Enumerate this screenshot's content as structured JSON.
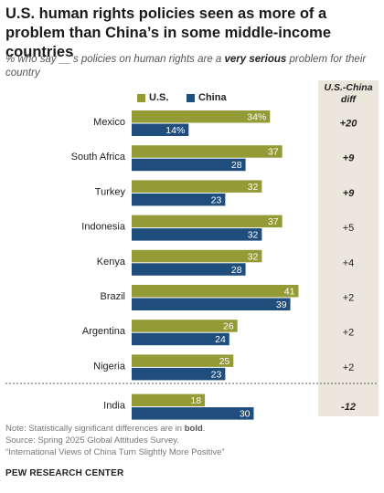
{
  "title": "U.S. human rights policies seen as more of a problem than China’s in some middle-income countries",
  "subtitle_pre": "% who say __’s policies on human rights are a ",
  "subtitle_bold": "very serious",
  "subtitle_post": " problem for their country",
  "diff_header": "U.S.-China diff",
  "colors": {
    "us": "#949b36",
    "china": "#1f4e7d",
    "diff_bg": "#ece7dc"
  },
  "chart_data": {
    "type": "bar",
    "orientation": "horizontal",
    "categories": [
      "Mexico",
      "South Africa",
      "Turkey",
      "Indonesia",
      "Kenya",
      "Brazil",
      "Argentina",
      "Nigeria",
      "India"
    ],
    "series": [
      {
        "name": "U.S.",
        "values": [
          34,
          37,
          32,
          37,
          32,
          41,
          26,
          25,
          18
        ],
        "labels": [
          "34%",
          "37",
          "32",
          "37",
          "32",
          "41",
          "26",
          "25",
          "18"
        ]
      },
      {
        "name": "China",
        "values": [
          14,
          28,
          23,
          32,
          28,
          39,
          24,
          23,
          30
        ],
        "labels": [
          "14%",
          "28",
          "23",
          "32",
          "28",
          "39",
          "24",
          "23",
          "30"
        ]
      }
    ],
    "diff": [
      "+20",
      "+9",
      "+9",
      "+5",
      "+4",
      "+2",
      "+2",
      "+2",
      "-12"
    ],
    "diff_bold": [
      true,
      true,
      true,
      false,
      false,
      false,
      false,
      false,
      true
    ]
  },
  "footer": {
    "note_pre": "Note: Statistically significant differences are in ",
    "note_bold": "bold",
    "note_post": ".",
    "source": "Source: Spring 2025 Global Attitudes Survey.",
    "report": "“International Views of China Turn Slightly More Positive”"
  },
  "brand": "PEW RESEARCH CENTER"
}
